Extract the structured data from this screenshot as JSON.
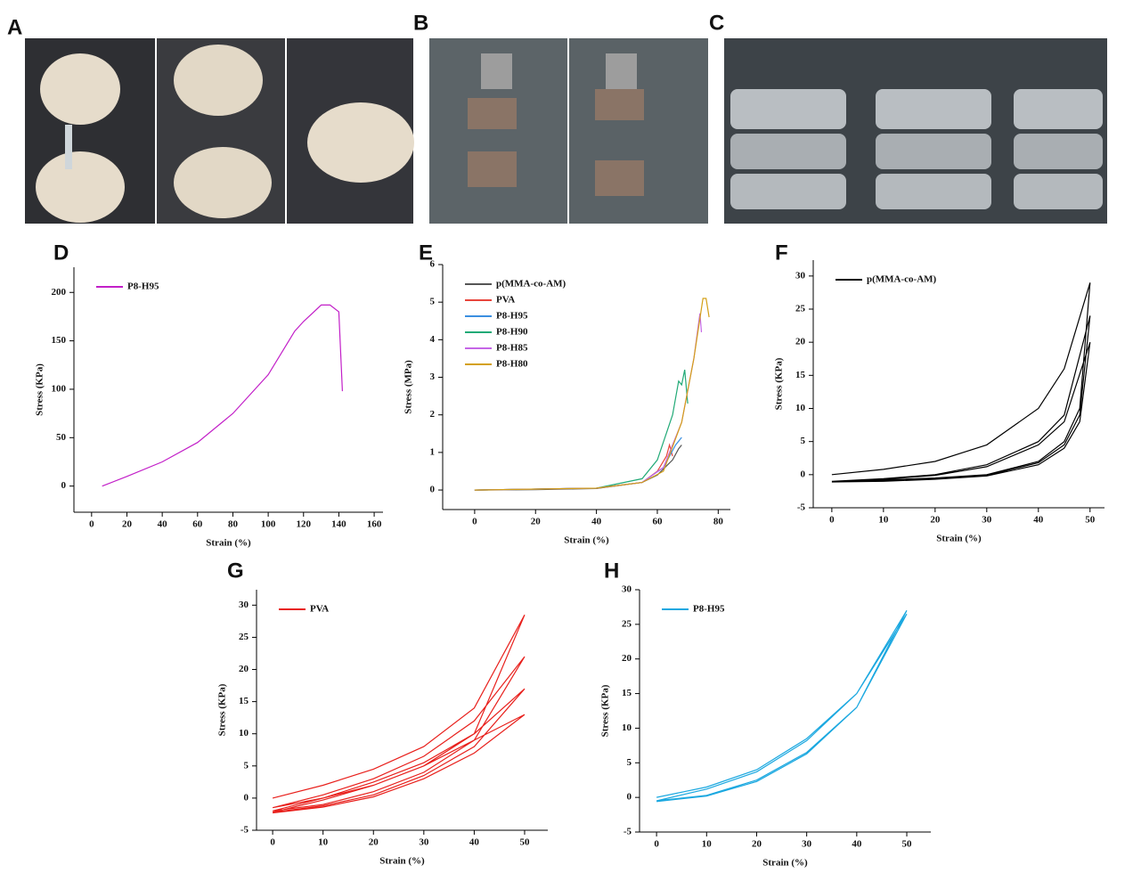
{
  "photo_panels": [
    "A",
    "B",
    "C"
  ],
  "chart_data": [
    {
      "type": "line",
      "label": "D",
      "xlabel": "Strain (%)",
      "ylabel": "Stress (KPa)",
      "xlim": [
        -10,
        165
      ],
      "ylim": [
        -27,
        226
      ],
      "xticks": [
        0,
        20,
        40,
        60,
        80,
        100,
        120,
        140,
        160
      ],
      "yticks": [
        0,
        50,
        100,
        150,
        200
      ],
      "legend": "upper left",
      "series": [
        {
          "name": "P8-H95",
          "color": "#c21fc8",
          "x": [
            6,
            20,
            40,
            60,
            80,
            100,
            115,
            120,
            130,
            135,
            140,
            142
          ],
          "values": [
            0,
            10,
            25,
            45,
            75,
            115,
            160,
            170,
            187,
            187,
            180,
            98
          ]
        }
      ]
    },
    {
      "type": "line",
      "label": "E",
      "xlabel": "Strain (%)",
      "ylabel": "Stress (MPa)",
      "xlim": [
        -10.5,
        84
      ],
      "ylim": [
        -0.52,
        6
      ],
      "xticks": [
        0,
        20,
        40,
        60,
        80
      ],
      "yticks": [
        0,
        1,
        2,
        3,
        4,
        5,
        6
      ],
      "legend": "upper left",
      "series": [
        {
          "name": "p(MMA-co-AM)",
          "color": "#555555",
          "x": [
            0,
            20,
            40,
            55,
            60,
            65,
            67,
            68
          ],
          "values": [
            0,
            0.01,
            0.04,
            0.2,
            0.4,
            0.8,
            1.1,
            1.2
          ]
        },
        {
          "name": "PVA",
          "color": "#e8453c",
          "x": [
            0,
            40,
            55,
            60,
            63,
            64,
            65
          ],
          "values": [
            0,
            0.05,
            0.2,
            0.5,
            0.9,
            1.2,
            0.9
          ]
        },
        {
          "name": "P8-H95",
          "color": "#3b8fe0",
          "x": [
            0,
            40,
            55,
            62,
            66,
            68
          ],
          "values": [
            0,
            0.05,
            0.2,
            0.6,
            1.2,
            1.4
          ]
        },
        {
          "name": "P8-H90",
          "color": "#22aa77",
          "x": [
            0,
            40,
            55,
            60,
            65,
            67,
            68,
            69,
            70
          ],
          "values": [
            0,
            0.05,
            0.3,
            0.8,
            2.0,
            2.9,
            2.8,
            3.2,
            2.3
          ]
        },
        {
          "name": "P8-H85",
          "color": "#c566e6",
          "x": [
            0,
            40,
            55,
            62,
            68,
            72,
            74,
            74.5
          ],
          "values": [
            0,
            0.05,
            0.2,
            0.6,
            1.8,
            3.5,
            4.7,
            4.2
          ]
        },
        {
          "name": "P8-H80",
          "color": "#d4a017",
          "x": [
            0,
            40,
            55,
            62,
            68,
            72,
            75,
            76,
            77
          ],
          "values": [
            0,
            0.05,
            0.2,
            0.5,
            1.8,
            3.5,
            5.1,
            5.1,
            4.6
          ]
        }
      ]
    },
    {
      "type": "line",
      "label": "F",
      "xlabel": "Strain (%)",
      "ylabel": "Stress (KPa)",
      "xlim": [
        -3.6,
        52.8
      ],
      "ylim": [
        -5,
        32.4
      ],
      "xticks": [
        0,
        10,
        20,
        30,
        40,
        50
      ],
      "yticks": [
        -5,
        0,
        5,
        10,
        15,
        20,
        25,
        30
      ],
      "legend": "upper left",
      "series": [
        {
          "name": "p(MMA-co-AM)",
          "color": "#000000",
          "x": [
            0,
            10,
            20,
            30,
            40,
            45,
            50,
            48,
            45,
            40,
            30,
            20,
            10,
            0,
            10,
            20,
            30,
            40,
            45,
            50,
            48,
            45,
            40,
            30,
            20,
            10,
            0,
            10,
            20,
            30,
            40,
            45,
            50,
            48,
            45,
            40,
            30,
            20,
            10,
            0
          ],
          "values": [
            0,
            0.8,
            2,
            4.5,
            10,
            16,
            29,
            10,
            5,
            2,
            0,
            -0.5,
            -0.8,
            -1,
            -0.6,
            0,
            1.5,
            5,
            9,
            24,
            9,
            4.5,
            1.8,
            -0.1,
            -0.6,
            -0.9,
            -1,
            -0.7,
            -0.1,
            1.2,
            4.5,
            8,
            20,
            8,
            4,
            1.5,
            -0.2,
            -0.7,
            -1,
            -1.1
          ]
        }
      ]
    },
    {
      "type": "line",
      "label": "G",
      "xlabel": "Strain (%)",
      "ylabel": "Stress (KPa)",
      "xlim": [
        -3.2,
        54.6
      ],
      "ylim": [
        -5,
        32.4
      ],
      "xticks": [
        0,
        10,
        20,
        30,
        40,
        50
      ],
      "yticks": [
        -5,
        0,
        5,
        10,
        15,
        20,
        25,
        30
      ],
      "legend": "upper left",
      "series": [
        {
          "name": "PVA",
          "color": "#e8201c",
          "x": [
            0,
            10,
            20,
            30,
            40,
            50,
            40,
            30,
            20,
            10,
            0,
            10,
            20,
            30,
            40,
            50,
            40,
            30,
            20,
            10,
            0,
            10,
            20,
            30,
            40,
            50,
            40,
            30,
            20,
            10,
            0,
            10,
            20,
            30,
            40,
            50,
            40,
            30,
            20,
            10,
            0
          ],
          "values": [
            0,
            2,
            4.5,
            8,
            14,
            28.5,
            10,
            5,
            2,
            0,
            -1.5,
            0.5,
            3,
            6.5,
            12,
            22,
            9,
            4,
            1,
            -1,
            -2,
            0,
            2.5,
            5.5,
            10,
            17,
            8,
            3.5,
            0.5,
            -1.2,
            -2.2,
            -0.3,
            2,
            5,
            9,
            13,
            7,
            3,
            0.2,
            -1.4,
            -2.3
          ]
        }
      ]
    },
    {
      "type": "line",
      "label": "H",
      "xlabel": "Strain (%)",
      "ylabel": "Stress (KPa)",
      "xlim": [
        -3.4,
        54.8
      ],
      "ylim": [
        -5,
        30
      ],
      "xticks": [
        0,
        10,
        20,
        30,
        40,
        50
      ],
      "yticks": [
        -5,
        0,
        5,
        10,
        15,
        20,
        25,
        30
      ],
      "legend": "upper left",
      "series": [
        {
          "name": "P8-H95",
          "color": "#1ba8e0",
          "x": [
            0,
            10,
            20,
            30,
            40,
            50,
            40,
            30,
            20,
            10,
            0,
            10,
            20,
            30,
            40,
            50,
            40,
            30,
            20,
            10,
            0
          ],
          "values": [
            0,
            1.5,
            4,
            8.5,
            15,
            27,
            13,
            6.5,
            2.5,
            0.3,
            -0.5,
            1.2,
            3.7,
            8.2,
            15,
            26.5,
            13,
            6.3,
            2.3,
            0.2,
            -0.6
          ]
        }
      ]
    }
  ]
}
